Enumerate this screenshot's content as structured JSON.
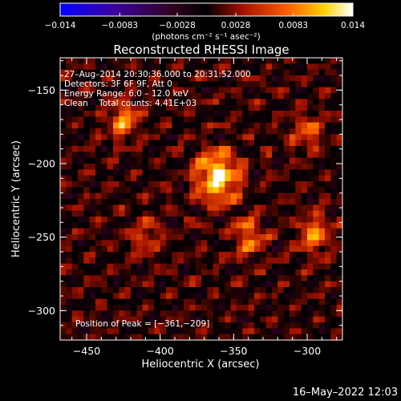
{
  "colorbar": {
    "tick_labels": [
      "−0.014",
      "−0.0083",
      "−0.0028",
      "0.0028",
      "0.0083",
      "0.014"
    ],
    "tick_values": [
      -0.014,
      -0.0083,
      -0.0028,
      0.0028,
      0.0083,
      0.014
    ],
    "range": [
      -0.014,
      0.014
    ],
    "unit_label": "(photons cm⁻² s⁻¹ asec⁻²)",
    "colormap": "blue-purple-black-red-orange-yellow-white"
  },
  "chart_data": {
    "type": "heatmap",
    "title": "Reconstructed RHESSI Image",
    "xlabel": "Heliocentric X (arcsec)",
    "ylabel": "Heliocentric Y (arcsec)",
    "xlim": [
      -468,
      -276
    ],
    "ylim": [
      -320,
      -128
    ],
    "xticks": [
      -450,
      -400,
      -350,
      -300
    ],
    "yticks": [
      -300,
      -250,
      -200,
      -150
    ],
    "xtick_labels": [
      "−450",
      "−400",
      "−350",
      "−300"
    ],
    "ytick_labels": [
      "−300",
      "−250",
      "−200",
      "−150"
    ],
    "peak": [
      -361,
      -209
    ],
    "annotations": [
      "27–Aug–2014 20:30:36.000 to 20:31:52.000",
      "Detectors: 3F 6F 9F, Att 0",
      "Energy Range: 6.0 – 12.0 keV",
      "Clean    Total counts: 4.41E+03"
    ],
    "peak_label": "Position of Peak = [−361,−209]",
    "hot_spots": [
      {
        "x": -361,
        "y": -209,
        "value": 0.014
      },
      {
        "x": -425,
        "y": -170,
        "value": 0.008
      },
      {
        "x": -340,
        "y": -250,
        "value": 0.007
      },
      {
        "x": -295,
        "y": -248,
        "value": 0.008
      },
      {
        "x": -300,
        "y": -178,
        "value": 0.006
      },
      {
        "x": -410,
        "y": -250,
        "value": 0.005
      }
    ]
  },
  "timestamp": "16–May–2022 12:03"
}
